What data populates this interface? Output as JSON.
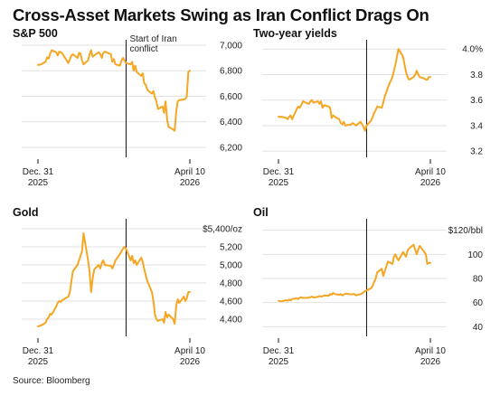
{
  "headline": "Cross-Asset Markets Swing as Iran Conflict Drags On",
  "source": "Source: Bloomberg",
  "colors": {
    "line": "#f5a623",
    "axis": "#111111",
    "grid": "#e2e2e2",
    "marker": "#111111"
  },
  "chart_data": [
    {
      "type": "line",
      "title": "S&P 500",
      "x": [
        "2025-12-31",
        "2026-01-02",
        "2026-01-05",
        "2026-01-06",
        "2026-01-07",
        "2026-01-08",
        "2026-01-09",
        "2026-01-12",
        "2026-01-13",
        "2026-01-14",
        "2026-01-15",
        "2026-01-16",
        "2026-01-20",
        "2026-01-21",
        "2026-01-22",
        "2026-01-23",
        "2026-01-26",
        "2026-01-27",
        "2026-01-28",
        "2026-01-29",
        "2026-01-30",
        "2026-02-02",
        "2026-02-03",
        "2026-02-04",
        "2026-02-05",
        "2026-02-06",
        "2026-02-09",
        "2026-02-10",
        "2026-02-11",
        "2026-02-12",
        "2026-02-13",
        "2026-02-17",
        "2026-02-18",
        "2026-02-19",
        "2026-02-20",
        "2026-02-23",
        "2026-02-24",
        "2026-02-25",
        "2026-02-26",
        "2026-02-27",
        "2026-03-02",
        "2026-03-03",
        "2026-03-04",
        "2026-03-05",
        "2026-03-06",
        "2026-03-09",
        "2026-03-10",
        "2026-03-11",
        "2026-03-12",
        "2026-03-13",
        "2026-03-16",
        "2026-03-17",
        "2026-03-18",
        "2026-03-19",
        "2026-03-20",
        "2026-03-23",
        "2026-03-24",
        "2026-03-25",
        "2026-03-26",
        "2026-03-27",
        "2026-03-30",
        "2026-03-31",
        "2026-04-01",
        "2026-04-02",
        "2026-04-03",
        "2026-04-06",
        "2026-04-07",
        "2026-04-08",
        "2026-04-09",
        "2026-04-10"
      ],
      "values": [
        6845,
        6850,
        6870,
        6905,
        6895,
        6930,
        6960,
        6945,
        6920,
        6950,
        6945,
        6935,
        6860,
        6890,
        6920,
        6930,
        6900,
        6940,
        6935,
        6880,
        6850,
        6880,
        6930,
        6960,
        6910,
        6920,
        6945,
        6930,
        6900,
        6940,
        6950,
        6930,
        6870,
        6890,
        6850,
        6840,
        6880,
        6900,
        6880,
        6860,
        6850,
        6870,
        6800,
        6840,
        6790,
        6760,
        6780,
        6700,
        6690,
        6650,
        6620,
        6640,
        6590,
        6560,
        6500,
        6520,
        6470,
        6560,
        6420,
        6360,
        6340,
        6330,
        6480,
        6560,
        6570,
        6575,
        6580,
        6600,
        6790,
        6800
      ],
      "xlabel": "",
      "ylabel": "",
      "ylim": [
        6150,
        7000
      ],
      "yticks": [
        6200,
        6400,
        6600,
        6800,
        7000
      ],
      "ytick_labels": [
        "6,200",
        "6,400",
        "6,600",
        "6,800",
        "7,000"
      ],
      "xticks": [
        {
          "date": "2025-12-31",
          "label1": "Dec. 31",
          "label2": "2025"
        },
        {
          "date": "2026-04-10",
          "label1": "April 10",
          "label2": "2026"
        }
      ],
      "event": {
        "date": "2026-02-27",
        "label": [
          "Start of Iran",
          "conflict"
        ]
      },
      "grid": true
    },
    {
      "type": "line",
      "title": "Two-year yields",
      "x": [
        "2025-12-31",
        "2026-01-02",
        "2026-01-05",
        "2026-01-06",
        "2026-01-07",
        "2026-01-08",
        "2026-01-09",
        "2026-01-12",
        "2026-01-13",
        "2026-01-14",
        "2026-01-15",
        "2026-01-16",
        "2026-01-20",
        "2026-01-21",
        "2026-01-22",
        "2026-01-23",
        "2026-01-26",
        "2026-01-27",
        "2026-01-28",
        "2026-01-29",
        "2026-01-30",
        "2026-02-02",
        "2026-02-03",
        "2026-02-04",
        "2026-02-05",
        "2026-02-06",
        "2026-02-09",
        "2026-02-10",
        "2026-02-11",
        "2026-02-12",
        "2026-02-13",
        "2026-02-17",
        "2026-02-18",
        "2026-02-19",
        "2026-02-20",
        "2026-02-23",
        "2026-02-24",
        "2026-02-25",
        "2026-02-26",
        "2026-02-27",
        "2026-03-02",
        "2026-03-03",
        "2026-03-04",
        "2026-03-05",
        "2026-03-06",
        "2026-03-09",
        "2026-03-10",
        "2026-03-11",
        "2026-03-12",
        "2026-03-13",
        "2026-03-16",
        "2026-03-17",
        "2026-03-18",
        "2026-03-19",
        "2026-03-20",
        "2026-03-23",
        "2026-03-24",
        "2026-03-25",
        "2026-03-26",
        "2026-03-27",
        "2026-03-30",
        "2026-03-31",
        "2026-04-01",
        "2026-04-02",
        "2026-04-03",
        "2026-04-06",
        "2026-04-07",
        "2026-04-08",
        "2026-04-09",
        "2026-04-10"
      ],
      "values": [
        3.47,
        3.47,
        3.46,
        3.45,
        3.47,
        3.48,
        3.45,
        3.53,
        3.55,
        3.54,
        3.56,
        3.59,
        3.57,
        3.59,
        3.6,
        3.58,
        3.59,
        3.57,
        3.59,
        3.54,
        3.56,
        3.55,
        3.54,
        3.46,
        3.48,
        3.47,
        3.45,
        3.42,
        3.41,
        3.43,
        3.4,
        3.41,
        3.42,
        3.41,
        3.4,
        3.43,
        3.41,
        3.39,
        3.36,
        3.4,
        3.44,
        3.47,
        3.5,
        3.52,
        3.55,
        3.54,
        3.58,
        3.63,
        3.66,
        3.7,
        3.78,
        3.83,
        3.88,
        3.94,
        4.0,
        3.94,
        3.88,
        3.82,
        3.78,
        3.76,
        3.78,
        3.8,
        3.83,
        3.8,
        3.78,
        3.77,
        3.76,
        3.76,
        3.78,
        3.78
      ],
      "xlabel": "",
      "ylabel": "",
      "ylim": [
        3.18,
        4.03
      ],
      "yticks": [
        3.2,
        3.4,
        3.6,
        3.8,
        4.0
      ],
      "ytick_labels": [
        "3.2",
        "3.4",
        "3.6",
        "3.8",
        "4.0%"
      ],
      "xticks": [
        {
          "date": "2025-12-31",
          "label1": "Dec. 31",
          "label2": "2025"
        },
        {
          "date": "2026-04-10",
          "label1": "April 10",
          "label2": "2026"
        }
      ],
      "event": {
        "date": "2026-02-27",
        "label": []
      },
      "grid": true
    },
    {
      "type": "line",
      "title": "Gold",
      "x": [
        "2025-12-31",
        "2026-01-02",
        "2026-01-05",
        "2026-01-06",
        "2026-01-07",
        "2026-01-08",
        "2026-01-09",
        "2026-01-12",
        "2026-01-13",
        "2026-01-14",
        "2026-01-15",
        "2026-01-16",
        "2026-01-20",
        "2026-01-21",
        "2026-01-22",
        "2026-01-23",
        "2026-01-26",
        "2026-01-27",
        "2026-01-28",
        "2026-01-29",
        "2026-01-30",
        "2026-02-02",
        "2026-02-03",
        "2026-02-04",
        "2026-02-05",
        "2026-02-06",
        "2026-02-09",
        "2026-02-10",
        "2026-02-11",
        "2026-02-12",
        "2026-02-13",
        "2026-02-17",
        "2026-02-18",
        "2026-02-19",
        "2026-02-20",
        "2026-02-23",
        "2026-02-24",
        "2026-02-25",
        "2026-02-26",
        "2026-02-27",
        "2026-03-02",
        "2026-03-03",
        "2026-03-04",
        "2026-03-05",
        "2026-03-06",
        "2026-03-09",
        "2026-03-10",
        "2026-03-11",
        "2026-03-12",
        "2026-03-13",
        "2026-03-16",
        "2026-03-17",
        "2026-03-18",
        "2026-03-19",
        "2026-03-20",
        "2026-03-23",
        "2026-03-24",
        "2026-03-25",
        "2026-03-26",
        "2026-03-27",
        "2026-03-30",
        "2026-03-31",
        "2026-04-01",
        "2026-04-02",
        "2026-04-03",
        "2026-04-06",
        "2026-04-07",
        "2026-04-08",
        "2026-04-09",
        "2026-04-10"
      ],
      "values": [
        4320,
        4330,
        4360,
        4400,
        4420,
        4460,
        4450,
        4540,
        4580,
        4600,
        4590,
        4610,
        4650,
        4700,
        4820,
        4930,
        5000,
        5050,
        5100,
        5150,
        5350,
        5050,
        4920,
        4700,
        4850,
        4950,
        5000,
        4960,
        5020,
        5050,
        5000,
        4990,
        4960,
        5000,
        5050,
        5120,
        5150,
        5180,
        5200,
        5180,
        5050,
        5100,
        5020,
        5050,
        5000,
        5080,
        5030,
        4950,
        4880,
        4820,
        4700,
        4600,
        4450,
        4400,
        4380,
        4400,
        4360,
        4480,
        4420,
        4450,
        4400,
        4350,
        4550,
        4620,
        4580,
        4650,
        4600,
        4630,
        4700,
        4700
      ],
      "xlabel": "",
      "ylabel": "",
      "ylim": [
        4250,
        5450
      ],
      "yticks": [
        4400,
        4600,
        4800,
        5000,
        5200,
        5400
      ],
      "ytick_labels": [
        "4,400",
        "4,600",
        "4,800",
        "5,000",
        "5,200",
        "$5,400/oz"
      ],
      "xticks": [
        {
          "date": "2025-12-31",
          "label1": "Dec. 31",
          "label2": "2025"
        },
        {
          "date": "2026-04-10",
          "label1": "April 10",
          "label2": "2026"
        }
      ],
      "event": {
        "date": "2026-02-27",
        "label": []
      },
      "grid": true
    },
    {
      "type": "line",
      "title": "Oil",
      "x": [
        "2025-12-31",
        "2026-01-02",
        "2026-01-05",
        "2026-01-06",
        "2026-01-07",
        "2026-01-08",
        "2026-01-09",
        "2026-01-12",
        "2026-01-13",
        "2026-01-14",
        "2026-01-15",
        "2026-01-16",
        "2026-01-20",
        "2026-01-21",
        "2026-01-22",
        "2026-01-23",
        "2026-01-26",
        "2026-01-27",
        "2026-01-28",
        "2026-01-29",
        "2026-01-30",
        "2026-02-02",
        "2026-02-03",
        "2026-02-04",
        "2026-02-05",
        "2026-02-06",
        "2026-02-09",
        "2026-02-10",
        "2026-02-11",
        "2026-02-12",
        "2026-02-13",
        "2026-02-17",
        "2026-02-18",
        "2026-02-19",
        "2026-02-20",
        "2026-02-23",
        "2026-02-24",
        "2026-02-25",
        "2026-02-26",
        "2026-02-27",
        "2026-03-02",
        "2026-03-03",
        "2026-03-04",
        "2026-03-05",
        "2026-03-06",
        "2026-03-09",
        "2026-03-10",
        "2026-03-11",
        "2026-03-12",
        "2026-03-13",
        "2026-03-16",
        "2026-03-17",
        "2026-03-18",
        "2026-03-19",
        "2026-03-20",
        "2026-03-23",
        "2026-03-24",
        "2026-03-25",
        "2026-03-26",
        "2026-03-27",
        "2026-03-30",
        "2026-03-31",
        "2026-04-01",
        "2026-04-02",
        "2026-04-03",
        "2026-04-06",
        "2026-04-07",
        "2026-04-08",
        "2026-04-09",
        "2026-04-10"
      ],
      "values": [
        61.5,
        61.0,
        62.0,
        61.5,
        62.5,
        61.8,
        63.0,
        63.5,
        63.0,
        64.0,
        64.5,
        63.8,
        64.0,
        64.5,
        65.0,
        64.2,
        64.8,
        65.5,
        65.0,
        65.2,
        66.0,
        65.5,
        67.0,
        66.5,
        68.0,
        67.0,
        66.5,
        67.0,
        66.0,
        66.5,
        67.5,
        66.8,
        67.0,
        67.0,
        66.0,
        67.0,
        67.5,
        68.5,
        69.5,
        70.0,
        72.0,
        74.0,
        77.0,
        80.0,
        85.0,
        88.0,
        82.0,
        86.0,
        90.0,
        94.0,
        92.0,
        98.0,
        100.0,
        97.0,
        95.0,
        102.0,
        100.0,
        98.0,
        103.0,
        105.0,
        108.0,
        104.0,
        100.0,
        104.0,
        107.0,
        102.0,
        100.0,
        92.0,
        93.0,
        93.0
      ],
      "xlabel": "",
      "ylabel": "",
      "ylim": [
        35,
        125
      ],
      "yticks": [
        40,
        60,
        80,
        100,
        120
      ],
      "ytick_labels": [
        "40",
        "60",
        "80",
        "100",
        "$120/bbl"
      ],
      "xticks": [
        {
          "date": "2025-12-31",
          "label1": "Dec. 31",
          "label2": "2025"
        },
        {
          "date": "2026-04-10",
          "label1": "April 10",
          "label2": "2026"
        }
      ],
      "event": {
        "date": "2026-02-27",
        "label": []
      },
      "grid": true
    }
  ]
}
